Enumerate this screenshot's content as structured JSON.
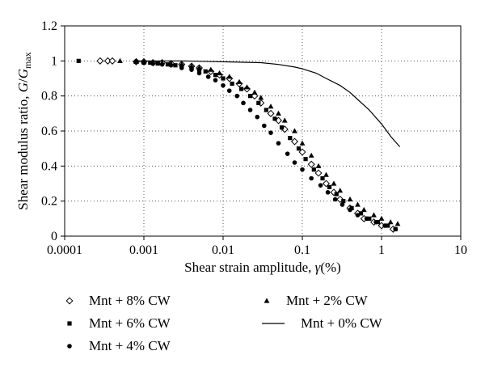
{
  "chart_data": {
    "type": "scatter",
    "xlabel_main": "Shear strain amplitude, ",
    "xlabel_symbol": "γ",
    "xlabel_unit": "(%)",
    "ylabel_main": "Shear modulus ratio, ",
    "ylabel_symbol": "G",
    "ylabel_sep": "/",
    "ylabel_symbol2": "G",
    "ylabel_sub": "max",
    "x_scale": "log",
    "xlim": [
      0.0001,
      10
    ],
    "ylim": [
      0,
      1.2
    ],
    "x_ticks": [
      0.0001,
      0.001,
      0.01,
      0.1,
      1,
      10
    ],
    "x_tick_labels": [
      "0.0001",
      "0.001",
      "0.01",
      "0.1",
      "1",
      "10"
    ],
    "y_ticks": [
      0,
      0.2,
      0.4,
      0.6,
      0.8,
      1,
      1.2
    ],
    "y_tick_labels": [
      "0",
      "0.2",
      "0.4",
      "0.6",
      "0.8",
      "1",
      "1.2"
    ],
    "grid": "dotted",
    "legend_position": "below",
    "series": [
      {
        "name": "Mnt + 8% CW",
        "marker": "diamond-open",
        "x": [
          0.00028,
          0.00035,
          0.0004,
          0.0008,
          0.001,
          0.0013,
          0.0017,
          0.0022,
          0.003,
          0.004,
          0.005,
          0.007,
          0.009,
          0.012,
          0.016,
          0.02,
          0.025,
          0.03,
          0.04,
          0.05,
          0.06,
          0.08,
          0.1,
          0.13,
          0.16,
          0.2,
          0.25,
          0.3,
          0.4,
          0.5,
          0.6,
          0.8,
          1.0,
          1.4
        ],
        "y": [
          1.0,
          1.0,
          1.0,
          0.995,
          0.995,
          0.99,
          0.99,
          0.985,
          0.98,
          0.97,
          0.96,
          0.94,
          0.92,
          0.9,
          0.87,
          0.84,
          0.8,
          0.76,
          0.7,
          0.66,
          0.61,
          0.54,
          0.48,
          0.41,
          0.36,
          0.3,
          0.25,
          0.21,
          0.16,
          0.13,
          0.1,
          0.08,
          0.06,
          0.04
        ]
      },
      {
        "name": "Mnt + 6% CW",
        "marker": "square",
        "x": [
          0.00015,
          0.0008,
          0.001,
          0.0012,
          0.0015,
          0.002,
          0.0025,
          0.003,
          0.004,
          0.005,
          0.006,
          0.008,
          0.01,
          0.013,
          0.017,
          0.022,
          0.028,
          0.035,
          0.045,
          0.055,
          0.07,
          0.09,
          0.11,
          0.14,
          0.18,
          0.22,
          0.27,
          0.33,
          0.42,
          0.55,
          0.7,
          0.9,
          1.2,
          1.5
        ],
        "y": [
          1.0,
          0.995,
          0.99,
          0.99,
          0.985,
          0.98,
          0.975,
          0.97,
          0.96,
          0.95,
          0.94,
          0.92,
          0.9,
          0.87,
          0.84,
          0.8,
          0.76,
          0.72,
          0.67,
          0.62,
          0.56,
          0.5,
          0.44,
          0.38,
          0.33,
          0.28,
          0.24,
          0.2,
          0.16,
          0.13,
          0.1,
          0.08,
          0.06,
          0.04
        ]
      },
      {
        "name": "Mnt + 4% CW",
        "marker": "circle",
        "x": [
          0.0008,
          0.001,
          0.0013,
          0.0017,
          0.0022,
          0.003,
          0.004,
          0.005,
          0.0065,
          0.008,
          0.01,
          0.012,
          0.015,
          0.018,
          0.022,
          0.027,
          0.033,
          0.04,
          0.05,
          0.065,
          0.08,
          0.1,
          0.13,
          0.17,
          0.21,
          0.26,
          0.32,
          0.4,
          0.5,
          0.65,
          0.85,
          1.1,
          1.5
        ],
        "y": [
          0.995,
          0.99,
          0.985,
          0.98,
          0.975,
          0.96,
          0.95,
          0.93,
          0.91,
          0.89,
          0.86,
          0.83,
          0.8,
          0.76,
          0.72,
          0.68,
          0.63,
          0.59,
          0.53,
          0.47,
          0.42,
          0.38,
          0.33,
          0.29,
          0.25,
          0.21,
          0.18,
          0.15,
          0.12,
          0.1,
          0.08,
          0.06,
          0.04
        ]
      },
      {
        "name": "Mnt + 2% CW",
        "marker": "triangle",
        "x": [
          0.0005,
          0.0008,
          0.001,
          0.0013,
          0.0017,
          0.0022,
          0.003,
          0.004,
          0.005,
          0.007,
          0.009,
          0.012,
          0.016,
          0.02,
          0.025,
          0.03,
          0.04,
          0.05,
          0.06,
          0.08,
          0.1,
          0.13,
          0.16,
          0.2,
          0.25,
          0.3,
          0.4,
          0.5,
          0.6,
          0.8,
          1.0,
          1.3,
          1.6
        ],
        "y": [
          1.0,
          0.995,
          0.995,
          0.99,
          0.99,
          0.985,
          0.98,
          0.97,
          0.96,
          0.95,
          0.93,
          0.91,
          0.88,
          0.85,
          0.82,
          0.79,
          0.74,
          0.7,
          0.66,
          0.6,
          0.53,
          0.46,
          0.4,
          0.35,
          0.3,
          0.26,
          0.21,
          0.18,
          0.15,
          0.12,
          0.1,
          0.08,
          0.07
        ]
      },
      {
        "name": "Mnt + 0% CW",
        "marker": "line",
        "x": [
          0.0008,
          0.001,
          0.003,
          0.01,
          0.03,
          0.05,
          0.08,
          0.1,
          0.15,
          0.2,
          0.3,
          0.4,
          0.5,
          0.7,
          1.0,
          1.3,
          1.7
        ],
        "y": [
          1.0,
          1.0,
          1.0,
          0.995,
          0.99,
          0.98,
          0.965,
          0.955,
          0.93,
          0.9,
          0.86,
          0.82,
          0.78,
          0.72,
          0.64,
          0.57,
          0.51
        ]
      }
    ]
  }
}
